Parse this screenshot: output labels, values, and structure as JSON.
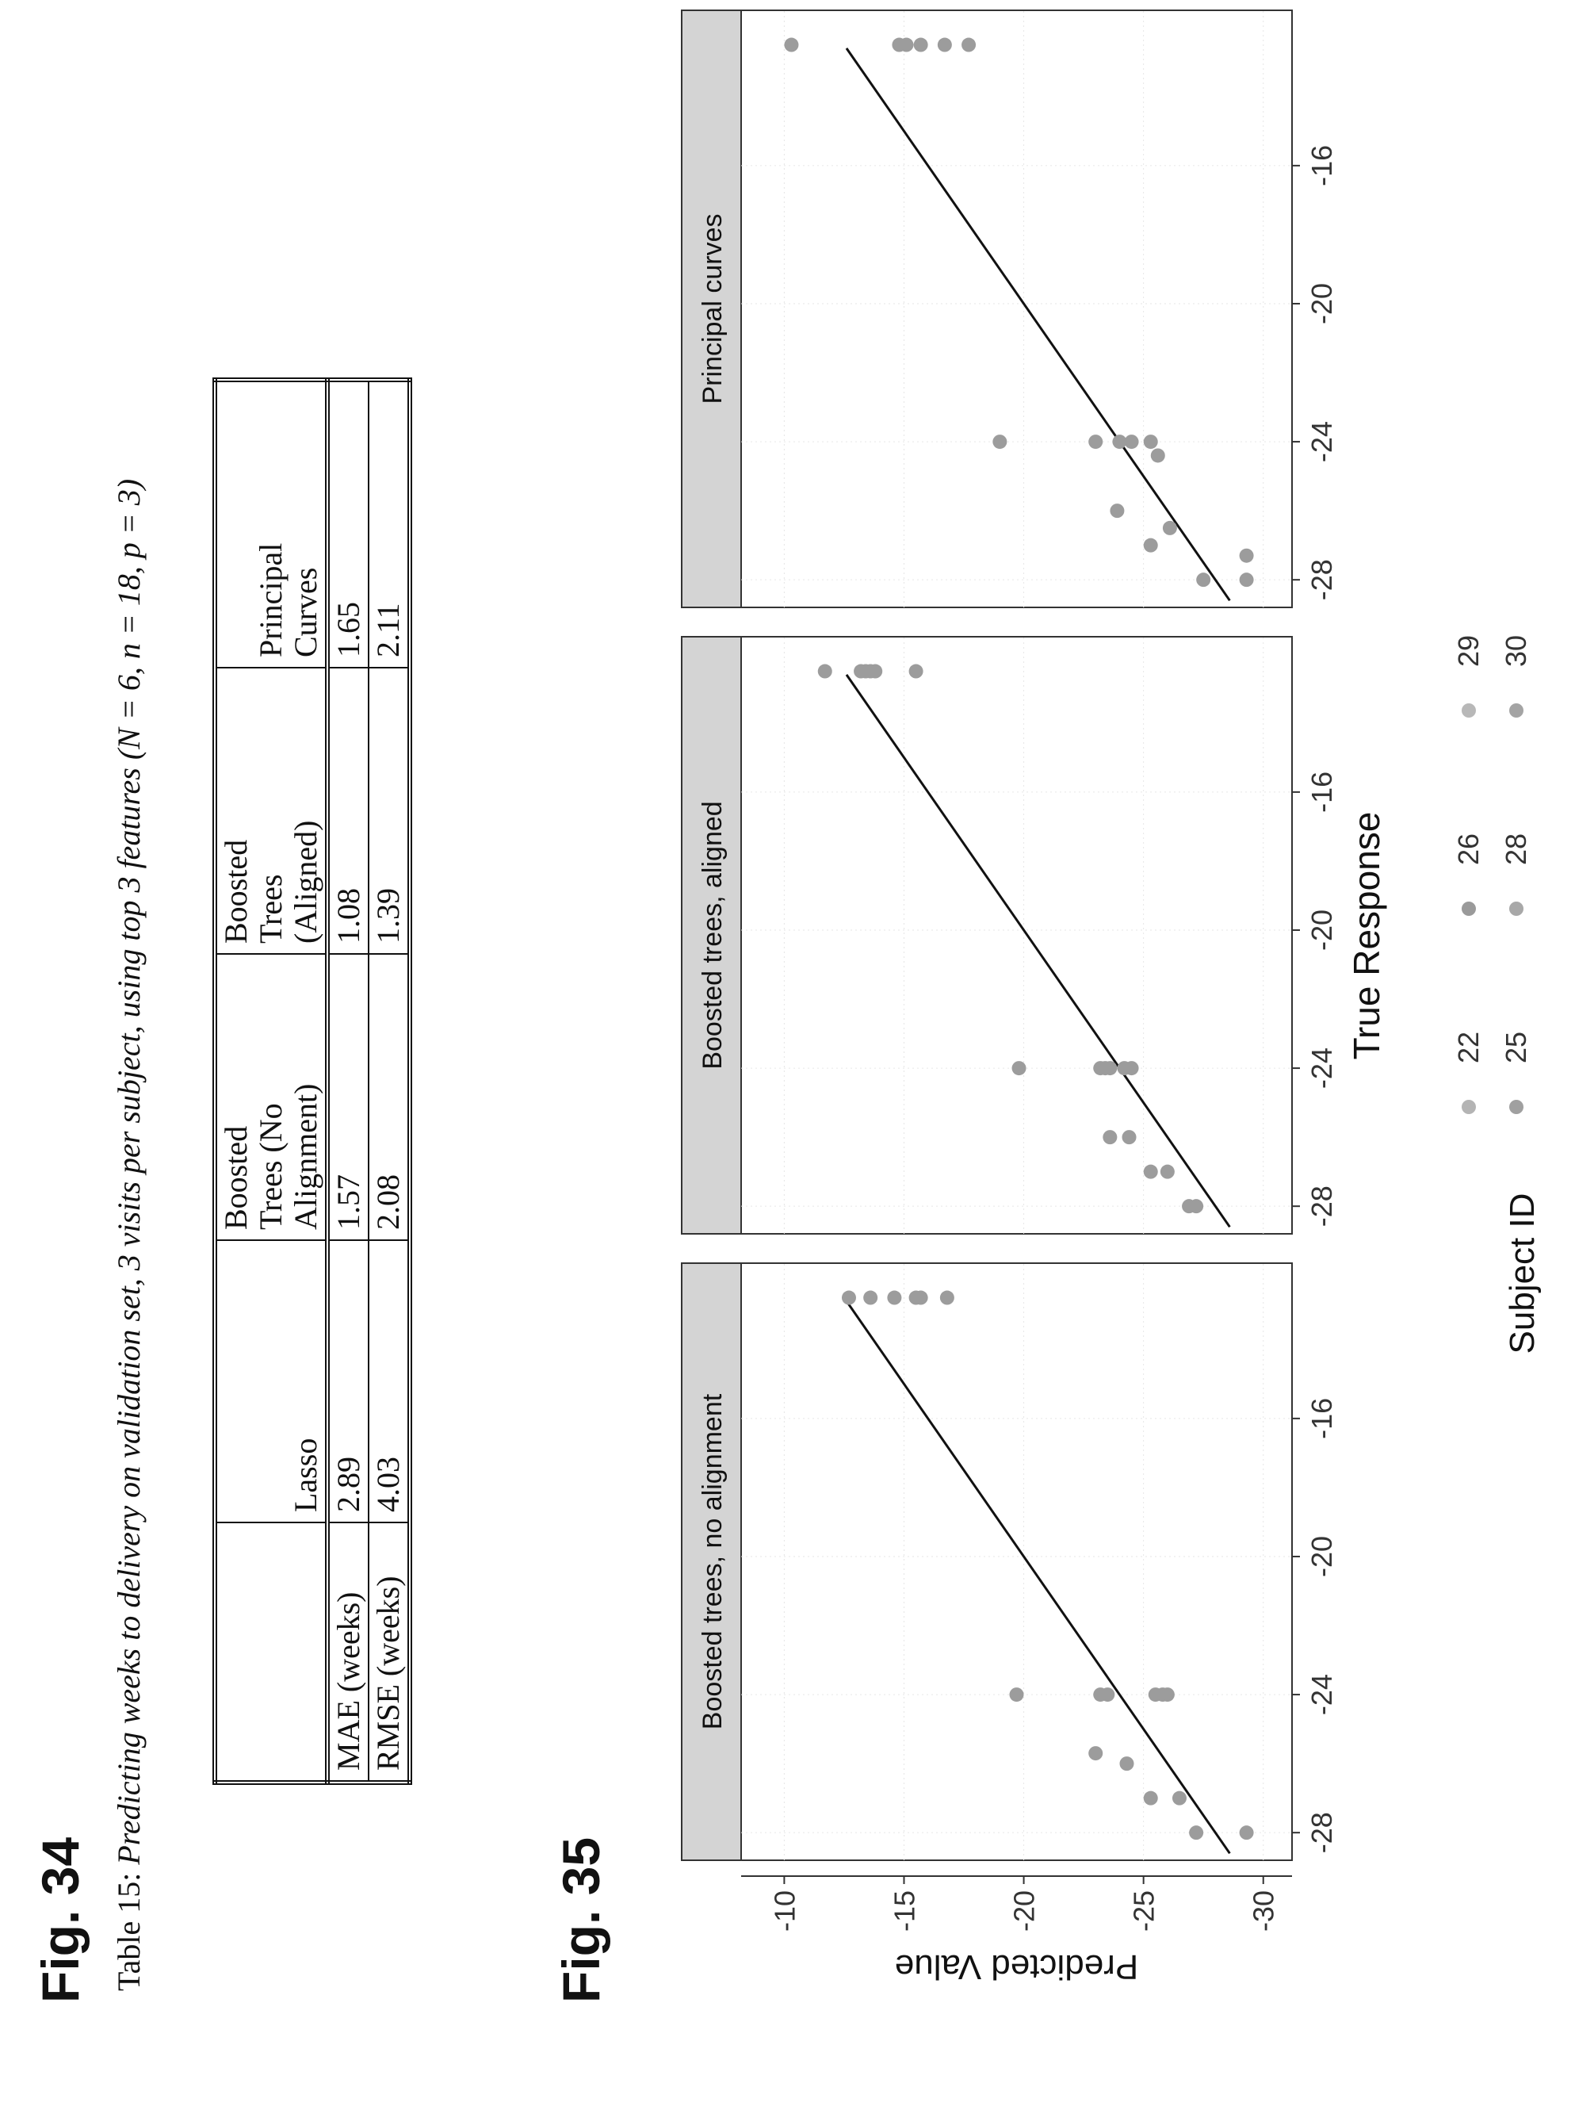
{
  "fig34": {
    "label": "Fig. 34",
    "caption_prefix": "Table 15: ",
    "caption_text": "Predicting weeks to delivery on validation set, 3 visits per subject, using top 3 features (N = 6, n = 18, p = 3)",
    "columns": [
      {
        "line1": "",
        "line2": "",
        "line3": ""
      },
      {
        "line1": "",
        "line2": "",
        "line3": "Lasso"
      },
      {
        "line1": "Boosted",
        "line2": "Trees (No",
        "line3": "Alignment)"
      },
      {
        "line1": "Boosted",
        "line2": "Trees",
        "line3": "(Aligned)"
      },
      {
        "line1": "",
        "line2": "Principal",
        "line3": "Curves"
      }
    ],
    "rows": [
      {
        "label": "MAE (weeks)",
        "values": [
          "2.89",
          "1.57",
          "1.08",
          "1.65"
        ]
      },
      {
        "label": "RMSE (weeks)",
        "values": [
          "4.03",
          "2.08",
          "1.39",
          "2.11"
        ]
      }
    ]
  },
  "fig35": {
    "label": "Fig. 35"
  },
  "chart_data": {
    "type": "scatter",
    "xlabel": "True Response",
    "ylabel": "Predicted Value",
    "xlim": [
      -28.8,
      -11.5
    ],
    "ylim": [
      -31.2,
      -8.2
    ],
    "x_ticks": [
      -28,
      -24,
      -20,
      -16
    ],
    "y_ticks": [
      -10,
      -15,
      -20,
      -25,
      -30
    ],
    "legend": {
      "title": "Subject ID",
      "placement": "bottom",
      "entries": [
        {
          "id": "22",
          "color": "#b4b4b4"
        },
        {
          "id": "25",
          "color": "#a0a0a0"
        },
        {
          "id": "26",
          "color": "#9a9a9a"
        },
        {
          "id": "28",
          "color": "#a8a8a8"
        },
        {
          "id": "29",
          "color": "#b8b8b8"
        },
        {
          "id": "30",
          "color": "#a4a4a4"
        }
      ]
    },
    "panels": [
      {
        "title": "Boosted trees, no alignment",
        "reference_line": {
          "x": [
            -28.6,
            -12.6
          ],
          "y": [
            -28.6,
            -12.6
          ]
        },
        "points": [
          {
            "x": -28,
            "y": -27.2
          },
          {
            "x": -28,
            "y": -29.3
          },
          {
            "x": -27,
            "y": -26.5
          },
          {
            "x": -27,
            "y": -25.3
          },
          {
            "x": -26,
            "y": -24.3
          },
          {
            "x": -25.7,
            "y": -23.0
          },
          {
            "x": -24,
            "y": -19.7
          },
          {
            "x": -24,
            "y": -23.2
          },
          {
            "x": -24,
            "y": -26.0
          },
          {
            "x": -24,
            "y": -25.8
          },
          {
            "x": -24,
            "y": -25.5
          },
          {
            "x": -24,
            "y": -23.5
          },
          {
            "x": -12.5,
            "y": -12.7
          },
          {
            "x": -12.5,
            "y": -15.7
          },
          {
            "x": -12.5,
            "y": -14.6
          },
          {
            "x": -12.5,
            "y": -13.6
          },
          {
            "x": -12.5,
            "y": -16.8
          },
          {
            "x": -12.5,
            "y": -15.5
          }
        ]
      },
      {
        "title": "Boosted trees, aligned",
        "reference_line": {
          "x": [
            -28.6,
            -12.6
          ],
          "y": [
            -28.6,
            -12.6
          ]
        },
        "points": [
          {
            "x": -28,
            "y": -27.2
          },
          {
            "x": -28,
            "y": -26.9
          },
          {
            "x": -27,
            "y": -25.3
          },
          {
            "x": -27,
            "y": -26.0
          },
          {
            "x": -26,
            "y": -23.6
          },
          {
            "x": -26,
            "y": -24.4
          },
          {
            "x": -24,
            "y": -19.8
          },
          {
            "x": -24,
            "y": -24.5
          },
          {
            "x": -24,
            "y": -24.2
          },
          {
            "x": -24,
            "y": -23.2
          },
          {
            "x": -24,
            "y": -23.4
          },
          {
            "x": -24,
            "y": -23.6
          },
          {
            "x": -12.5,
            "y": -11.7
          },
          {
            "x": -12.5,
            "y": -15.5
          },
          {
            "x": -12.5,
            "y": -13.2
          },
          {
            "x": -12.5,
            "y": -13.4
          },
          {
            "x": -12.5,
            "y": -13.6
          },
          {
            "x": -12.5,
            "y": -13.8
          }
        ]
      },
      {
        "title": "Principal curves",
        "reference_line": {
          "x": [
            -28.6,
            -12.6
          ],
          "y": [
            -28.6,
            -12.6
          ]
        },
        "points": [
          {
            "x": -28,
            "y": -29.3
          },
          {
            "x": -28,
            "y": -27.5
          },
          {
            "x": -27.3,
            "y": -29.3
          },
          {
            "x": -27,
            "y": -25.3
          },
          {
            "x": -26,
            "y": -23.9
          },
          {
            "x": -26.5,
            "y": -26.1
          },
          {
            "x": -24,
            "y": -19.0
          },
          {
            "x": -24,
            "y": -23.0
          },
          {
            "x": -24,
            "y": -24.0
          },
          {
            "x": -24,
            "y": -24.5
          },
          {
            "x": -24,
            "y": -25.3
          },
          {
            "x": -24.4,
            "y": -25.6
          },
          {
            "x": -12.5,
            "y": -10.3
          },
          {
            "x": -12.5,
            "y": -14.8
          },
          {
            "x": -12.5,
            "y": -15.1
          },
          {
            "x": -12.5,
            "y": -15.7
          },
          {
            "x": -12.5,
            "y": -16.7
          },
          {
            "x": -12.5,
            "y": -17.7
          }
        ]
      }
    ]
  }
}
